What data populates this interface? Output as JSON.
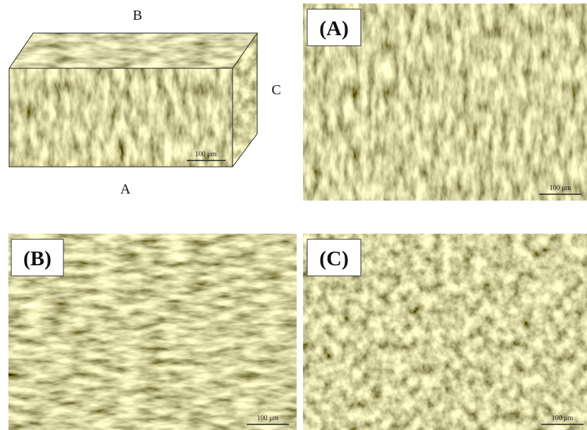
{
  "cube": {
    "top_label": "B",
    "right_label": "C",
    "bottom_label": "A",
    "scale_label": "100 μm"
  },
  "panels": [
    {
      "label": "(A)",
      "scale_label": "100 μm"
    },
    {
      "label": "(B)",
      "scale_label": "100 μm"
    },
    {
      "label": "(C)",
      "scale_label": "100 μm"
    }
  ]
}
